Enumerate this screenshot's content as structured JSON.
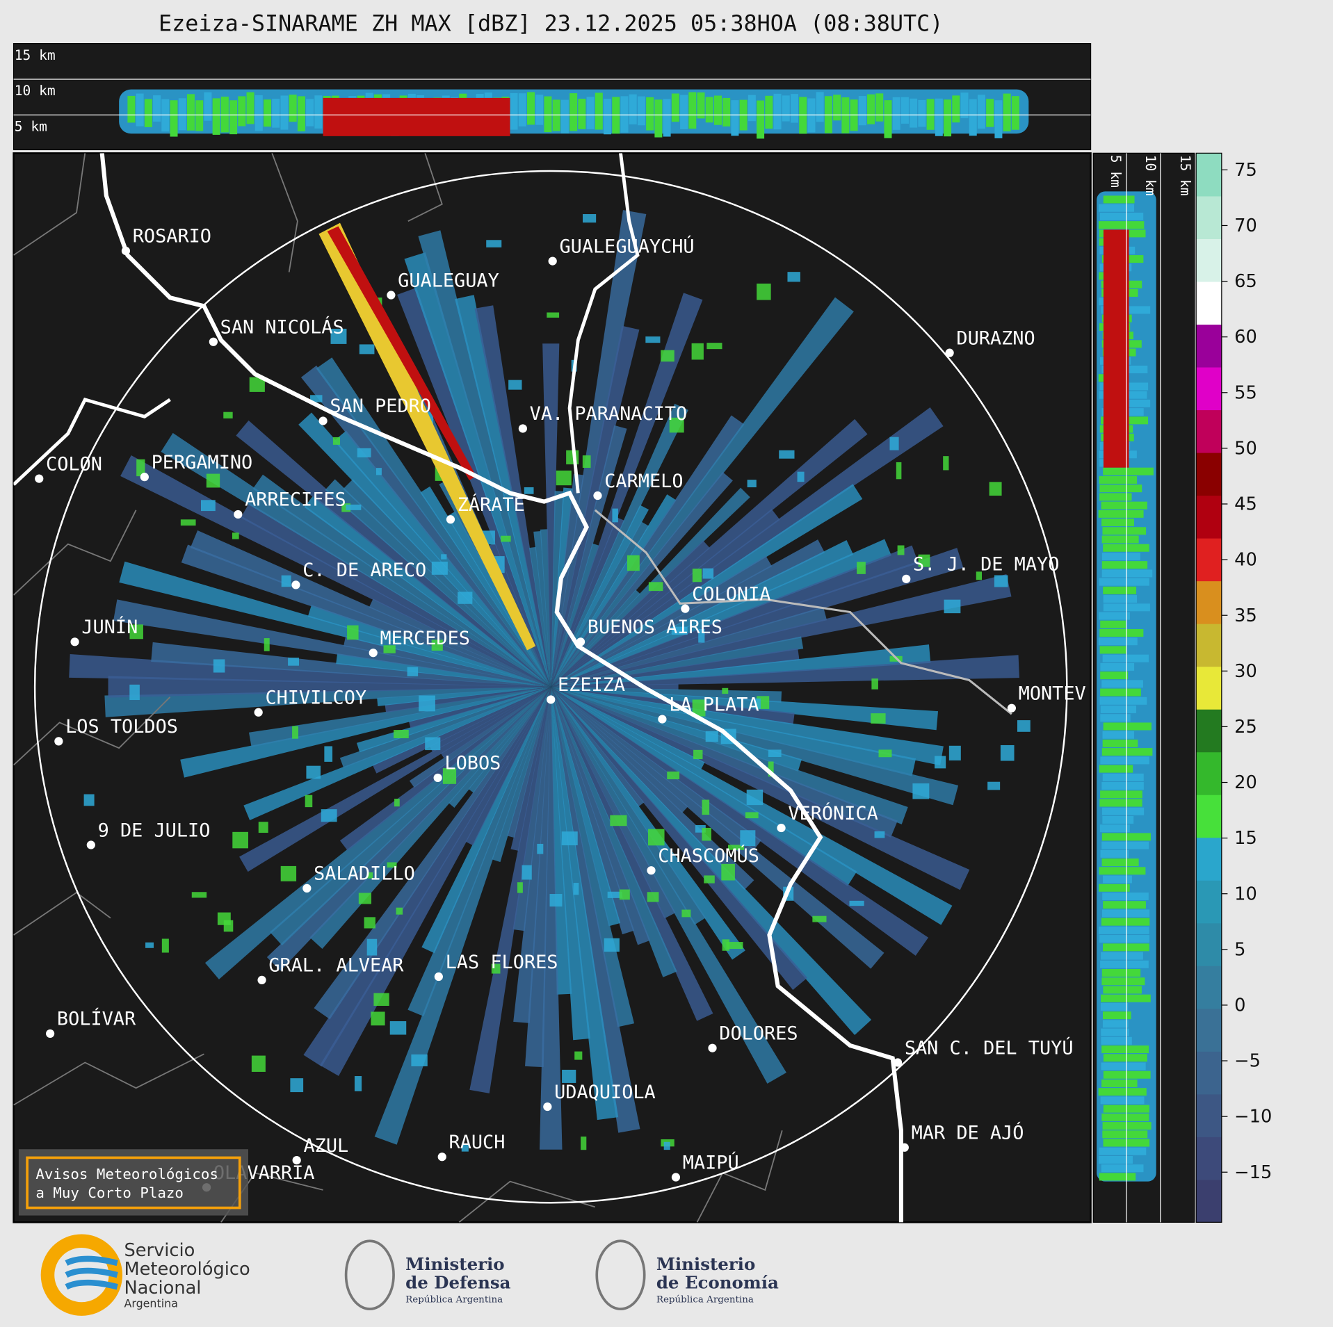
{
  "title": "Ezeiza-SINARAME ZH MAX [dBZ] 23.12.2025 05:38HOA (08:38UTC)",
  "height_labels": [
    "15 km",
    "10 km",
    "5 km"
  ],
  "cities": [
    "ROSARIO",
    "GUALEGUAYCHÚ",
    "GUALEGUAY",
    "SAN NICOLÁS",
    "DURAZNO",
    "SAN PEDRO",
    "VA. PARANACITO",
    "COLON",
    "PERGAMINO",
    "CARMELO",
    "ARRECIFES",
    "ZÁRATE",
    "S. J. DE MAYO",
    "C. DE ARECO",
    "COLONIA",
    "JUNÍN",
    "BUENOS AIRES",
    "MERCEDES",
    "MONTEV",
    "EZEIZA",
    "CHIVILCOY",
    "LA PLATA",
    "LOS TOLDOS",
    "LOBOS",
    "VERÓNICA",
    "9 DE JULIO",
    "CHASCOMÚS",
    "SALADILLO",
    "GRAL. ALVEAR",
    "LAS FLORES",
    "BOLÍVAR",
    "DOLORES",
    "SAN C. DEL TUYÚ",
    "UDAQUIOLA",
    "MAR DE AJÓ",
    "RAUCH",
    "AZUL",
    "OLAVARRÍA",
    "MAIPÚ"
  ],
  "colorbar": {
    "clim": [
      -19.5,
      76.5
    ],
    "ticks": [
      {
        "value": 75,
        "label": "75"
      },
      {
        "value": 70,
        "label": "70"
      },
      {
        "value": 65,
        "label": "65"
      },
      {
        "value": 60,
        "label": "60"
      },
      {
        "value": 55,
        "label": "55"
      },
      {
        "value": 50,
        "label": "50"
      },
      {
        "value": 45,
        "label": "45"
      },
      {
        "value": 40,
        "label": "40"
      },
      {
        "value": 35,
        "label": "35"
      },
      {
        "value": 30,
        "label": "30"
      },
      {
        "value": 25,
        "label": "25"
      },
      {
        "value": 20,
        "label": "20"
      },
      {
        "value": 15,
        "label": "15"
      },
      {
        "value": 10,
        "label": "10"
      },
      {
        "value": 5,
        "label": "5"
      },
      {
        "value": 0,
        "label": "0"
      },
      {
        "value": -5,
        "label": "−5"
      },
      {
        "value": -10,
        "label": "−10"
      },
      {
        "value": -15,
        "label": "−15"
      }
    ],
    "colors": [
      "#3b3f6e",
      "#3d4a7a",
      "#3d5784",
      "#3c648e",
      "#3a7196",
      "#357e9f",
      "#2e8ba8",
      "#2a98b5",
      "#2aa6cc",
      "#47e03a",
      "#34b82c",
      "#237a20",
      "#e8e838",
      "#c8b830",
      "#d98f1e",
      "#e02020",
      "#b00010",
      "#8a0000",
      "#c0005a",
      "#e000c8",
      "#9a009a",
      "#ffffff",
      "#d8f2e8",
      "#b8e8d4",
      "#8edcc0"
    ]
  },
  "warning_box": [
    "Avisos Meteorológicos",
    "a Muy Corto Plazo"
  ],
  "footer": {
    "smn": [
      "Servicio",
      "Meteorológico",
      "Nacional",
      "Argentina"
    ],
    "defensa": [
      "Ministerio",
      "de Defensa",
      "República Argentina"
    ],
    "economia": [
      "Ministerio",
      "de Economía",
      "República Argentina"
    ]
  }
}
